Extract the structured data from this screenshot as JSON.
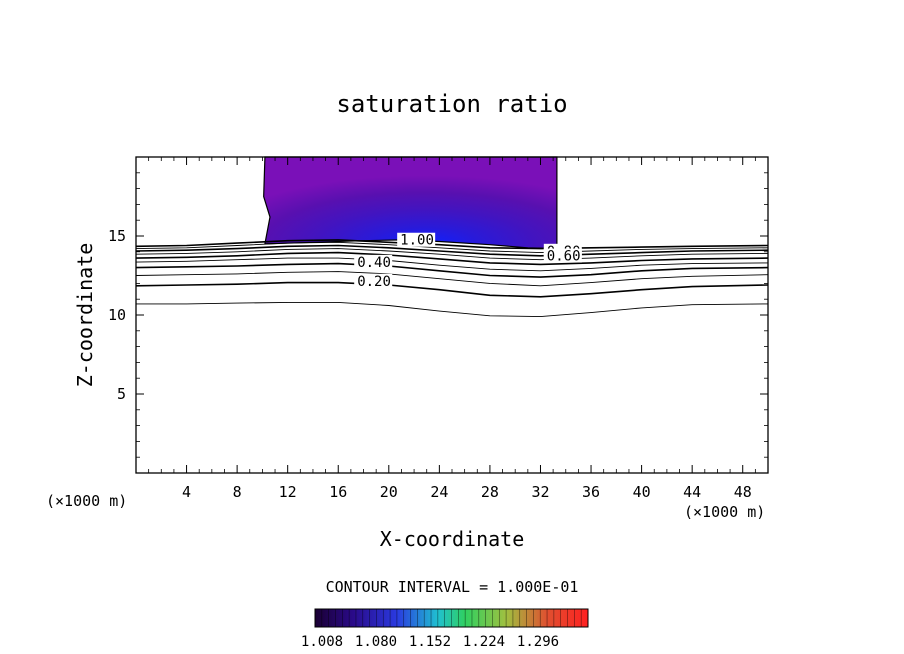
{
  "chart_data": {
    "type": "contour",
    "title": "saturation ratio",
    "xlabel": "X-coordinate",
    "ylabel": "Z-coordinate",
    "x_unit": "(×1000 m)",
    "z_unit": "(×1000 m)",
    "xlim": [
      0,
      50
    ],
    "ylim": [
      0,
      20
    ],
    "x_ticks": [
      "4",
      "8",
      "12",
      "16",
      "20",
      "24",
      "28",
      "32",
      "36",
      "40",
      "44",
      "48"
    ],
    "y_ticks": [
      "5",
      "10",
      "15"
    ],
    "contour_interval_text": "CONTOUR INTERVAL = 1.000E-01",
    "colorbar": {
      "labels": [
        "1.008",
        "1.080",
        "1.152",
        "1.224",
        "1.296"
      ],
      "colors": [
        "#1a0033",
        "#2a0a8a",
        "#2a3ae0",
        "#20c0d0",
        "#30d060",
        "#a0c040",
        "#e05030",
        "#ff2020"
      ]
    },
    "contour_labels": [
      {
        "text": "1.00",
        "x": 20.9,
        "z": 14.7
      },
      {
        "text": "0.80",
        "x": 32.5,
        "z": 14.0
      },
      {
        "text": "0.60",
        "x": 32.5,
        "z": 13.7
      },
      {
        "text": "0.40",
        "x": 17.5,
        "z": 13.3
      },
      {
        "text": "0.20",
        "x": 17.5,
        "z": 12.1
      }
    ],
    "contour_lines": [
      {
        "level": 1.0,
        "z": [
          14.35,
          14.4,
          14.55,
          14.7,
          14.75,
          14.6,
          14.45,
          14.25,
          14.2,
          14.25,
          14.3,
          14.35,
          14.4
        ]
      },
      {
        "level": 0.9,
        "z": [
          14.2,
          14.25,
          14.4,
          14.55,
          14.6,
          14.45,
          14.25,
          14.05,
          13.95,
          14.05,
          14.15,
          14.2,
          14.25
        ]
      },
      {
        "level": 0.8,
        "z": [
          14.05,
          14.1,
          14.2,
          14.35,
          14.4,
          14.25,
          14.05,
          13.85,
          13.75,
          13.85,
          13.95,
          14.05,
          14.1
        ]
      },
      {
        "level": 0.7,
        "z": [
          13.85,
          13.9,
          14.0,
          14.15,
          14.2,
          14.05,
          13.85,
          13.6,
          13.5,
          13.6,
          13.75,
          13.85,
          13.9
        ]
      },
      {
        "level": 0.6,
        "z": [
          13.6,
          13.65,
          13.75,
          13.9,
          13.95,
          13.8,
          13.55,
          13.3,
          13.2,
          13.3,
          13.45,
          13.55,
          13.6
        ]
      },
      {
        "level": 0.5,
        "z": [
          13.35,
          13.4,
          13.5,
          13.6,
          13.6,
          13.45,
          13.15,
          12.9,
          12.8,
          12.95,
          13.15,
          13.25,
          13.3
        ]
      },
      {
        "level": 0.4,
        "z": [
          13.0,
          13.05,
          13.1,
          13.2,
          13.25,
          13.1,
          12.8,
          12.5,
          12.4,
          12.55,
          12.8,
          12.95,
          13.0
        ]
      },
      {
        "level": 0.3,
        "z": [
          12.5,
          12.55,
          12.6,
          12.7,
          12.75,
          12.6,
          12.3,
          12.0,
          11.85,
          12.05,
          12.3,
          12.45,
          12.55
        ]
      },
      {
        "level": 0.2,
        "z": [
          11.85,
          11.9,
          11.95,
          12.05,
          12.05,
          11.9,
          11.6,
          11.25,
          11.15,
          11.35,
          11.6,
          11.8,
          11.9
        ]
      },
      {
        "level": 0.1,
        "z": [
          10.7,
          10.7,
          10.75,
          10.8,
          10.8,
          10.6,
          10.25,
          9.95,
          9.9,
          10.15,
          10.45,
          10.65,
          10.7
        ]
      }
    ],
    "contour_x": [
      0,
      4,
      8,
      12,
      16,
      20,
      24,
      28,
      32,
      36,
      40,
      44,
      50
    ],
    "shaded_region": {
      "x_left": 10.2,
      "x_right": 33.3,
      "z_top": 20,
      "base_z": [
        14.5,
        14.6,
        14.7,
        14.75,
        14.65,
        14.45,
        14.25,
        14.2
      ],
      "base_x": [
        10.2,
        14,
        18,
        21,
        24,
        28,
        31,
        33.3
      ]
    }
  }
}
